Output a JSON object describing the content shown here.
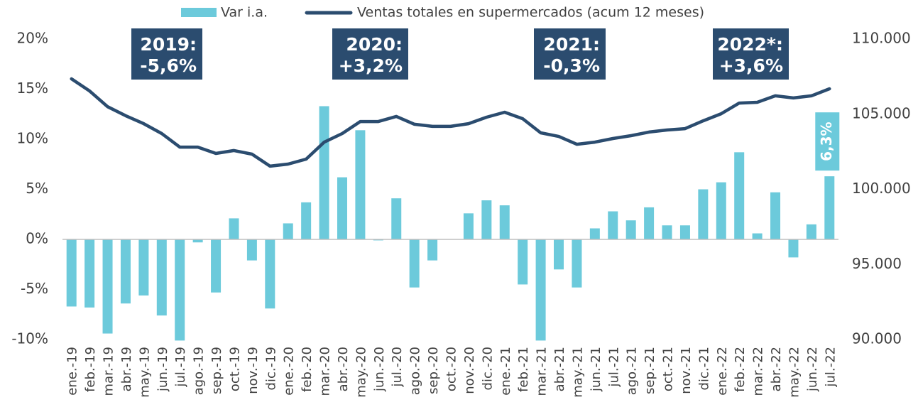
{
  "chart_data": {
    "type": "bar-line",
    "categories": [
      "ene.-19",
      "feb.-19",
      "mar.-19",
      "abr.-19",
      "may.-19",
      "jun.-19",
      "jul.-19",
      "ago.-19",
      "sep.-19",
      "oct.-19",
      "nov.-19",
      "dic.-19",
      "ene.-20",
      "feb.-20",
      "mar.-20",
      "abr.-20",
      "may.-20",
      "jun.-20",
      "jul.-20",
      "ago.-20",
      "sep.-20",
      "oct.-20",
      "nov.-20",
      "dic.-20",
      "ene.-21",
      "feb.-21",
      "mar.-21",
      "abr.-21",
      "may.-21",
      "jun.-21",
      "jul.-21",
      "ago.-21",
      "sep.-21",
      "oct.-21",
      "nov.-21",
      "dic.-21",
      "ene.-22",
      "feb.-22",
      "mar.-22",
      "abr.-22",
      "may.-22",
      "jun.-22",
      "jul.-22"
    ],
    "series": [
      {
        "name": "Var i.a.",
        "type": "bar",
        "color": "#6ccadb",
        "values": [
          -6.7,
          -6.8,
          -9.4,
          -6.4,
          -5.6,
          -7.6,
          -10.1,
          -0.3,
          -5.3,
          2.1,
          -2.1,
          -6.9,
          1.6,
          3.7,
          13.3,
          6.2,
          10.9,
          -0.1,
          4.1,
          -4.8,
          -2.1,
          0,
          2.6,
          3.9,
          3.4,
          -4.5,
          -10.1,
          -3.0,
          -4.8,
          1.1,
          2.8,
          1.9,
          3.2,
          1.4,
          1.4,
          5.0,
          5.7,
          8.7,
          0.6,
          4.7,
          -1.8,
          1.5,
          6.3
        ],
        "value_labels": [
          null,
          null,
          null,
          null,
          null,
          null,
          null,
          null,
          null,
          null,
          null,
          null,
          null,
          null,
          null,
          null,
          null,
          null,
          null,
          null,
          null,
          null,
          null,
          null,
          null,
          null,
          null,
          null,
          null,
          null,
          null,
          null,
          null,
          null,
          null,
          null,
          null,
          null,
          null,
          null,
          null,
          null,
          "6,3%"
        ]
      },
      {
        "name": "Ventas totales en supermercados (acum 12 meses)",
        "type": "line",
        "color": "#2b4c6f",
        "axis": "y2",
        "values": [
          107350,
          106550,
          105500,
          104900,
          104370,
          103710,
          102810,
          102810,
          102390,
          102580,
          102340,
          101540,
          101680,
          102010,
          103140,
          103710,
          104510,
          104510,
          104850,
          104330,
          104190,
          104190,
          104370,
          104800,
          105130,
          104700,
          103760,
          103520,
          103000,
          103140,
          103380,
          103570,
          103810,
          103950,
          104040,
          104560,
          105030,
          105740,
          105790,
          106220,
          106080,
          106220,
          106690
        ]
      }
    ],
    "ylim": [
      -10,
      20
    ],
    "yticks": [
      {
        "value": -10,
        "label": "-10%"
      },
      {
        "value": -5,
        "label": "-5%"
      },
      {
        "value": 0,
        "label": "0%"
      },
      {
        "value": 5,
        "label": "5%"
      },
      {
        "value": 10,
        "label": "10%"
      },
      {
        "value": 15,
        "label": "15%"
      },
      {
        "value": 20,
        "label": "20%"
      }
    ],
    "y2lim": [
      90000,
      110000
    ],
    "y2ticks": [
      {
        "value": 90000,
        "label": "90.000"
      },
      {
        "value": 95000,
        "label": "95.000"
      },
      {
        "value": 100000,
        "label": "100.000"
      },
      {
        "value": 105000,
        "label": "105.000"
      },
      {
        "value": 110000,
        "label": "110.000"
      }
    ],
    "annotations": [
      {
        "lines": [
          "2019:",
          "-5,6%"
        ]
      },
      {
        "lines": [
          "2020:",
          "+3,2%"
        ]
      },
      {
        "lines": [
          "2021:",
          "-0,3%"
        ]
      },
      {
        "lines": [
          "2022*:",
          "+3,6%"
        ]
      }
    ],
    "annotation_color": "#2b4c6f"
  }
}
